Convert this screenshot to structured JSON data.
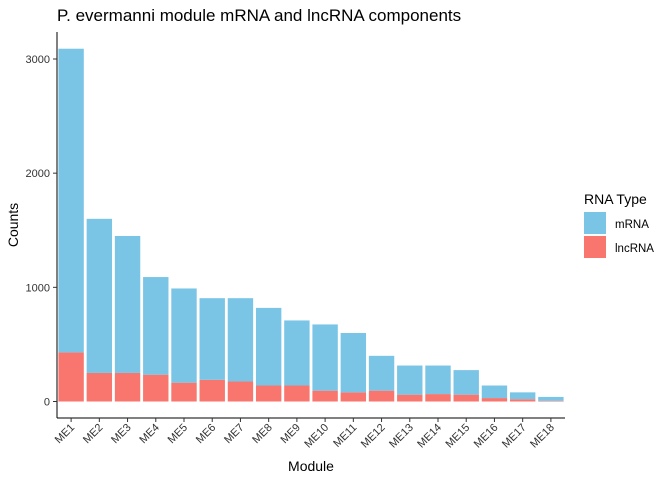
{
  "chart_data": {
    "type": "bar",
    "stacked": true,
    "title": "P. evermanni module mRNA and lncRNA components",
    "xlabel": "Module",
    "ylabel": "Counts",
    "ylim": [
      0,
      3200
    ],
    "yticks": [
      0,
      1000,
      2000,
      3000
    ],
    "grid": false,
    "legend": {
      "title": "RNA Type",
      "placement": "right",
      "entries": [
        {
          "label": "mRNA",
          "color": "#7AC5E6"
        },
        {
          "label": "lncRNA",
          "color": "#F8766D"
        }
      ]
    },
    "categories": [
      "ME1",
      "ME2",
      "ME3",
      "ME4",
      "ME5",
      "ME6",
      "ME7",
      "ME8",
      "ME9",
      "ME10",
      "ME11",
      "ME12",
      "ME13",
      "ME14",
      "ME15",
      "ME16",
      "ME17",
      "ME18"
    ],
    "series": [
      {
        "name": "lncRNA",
        "color": "#F8766D",
        "values": [
          430,
          250,
          250,
          235,
          165,
          190,
          175,
          140,
          140,
          95,
          80,
          95,
          60,
          65,
          60,
          30,
          20,
          5
        ]
      },
      {
        "name": "mRNA",
        "color": "#7AC5E6",
        "values": [
          2660,
          1350,
          1200,
          855,
          825,
          715,
          730,
          680,
          570,
          580,
          520,
          305,
          255,
          250,
          215,
          110,
          60,
          35
        ]
      }
    ]
  }
}
